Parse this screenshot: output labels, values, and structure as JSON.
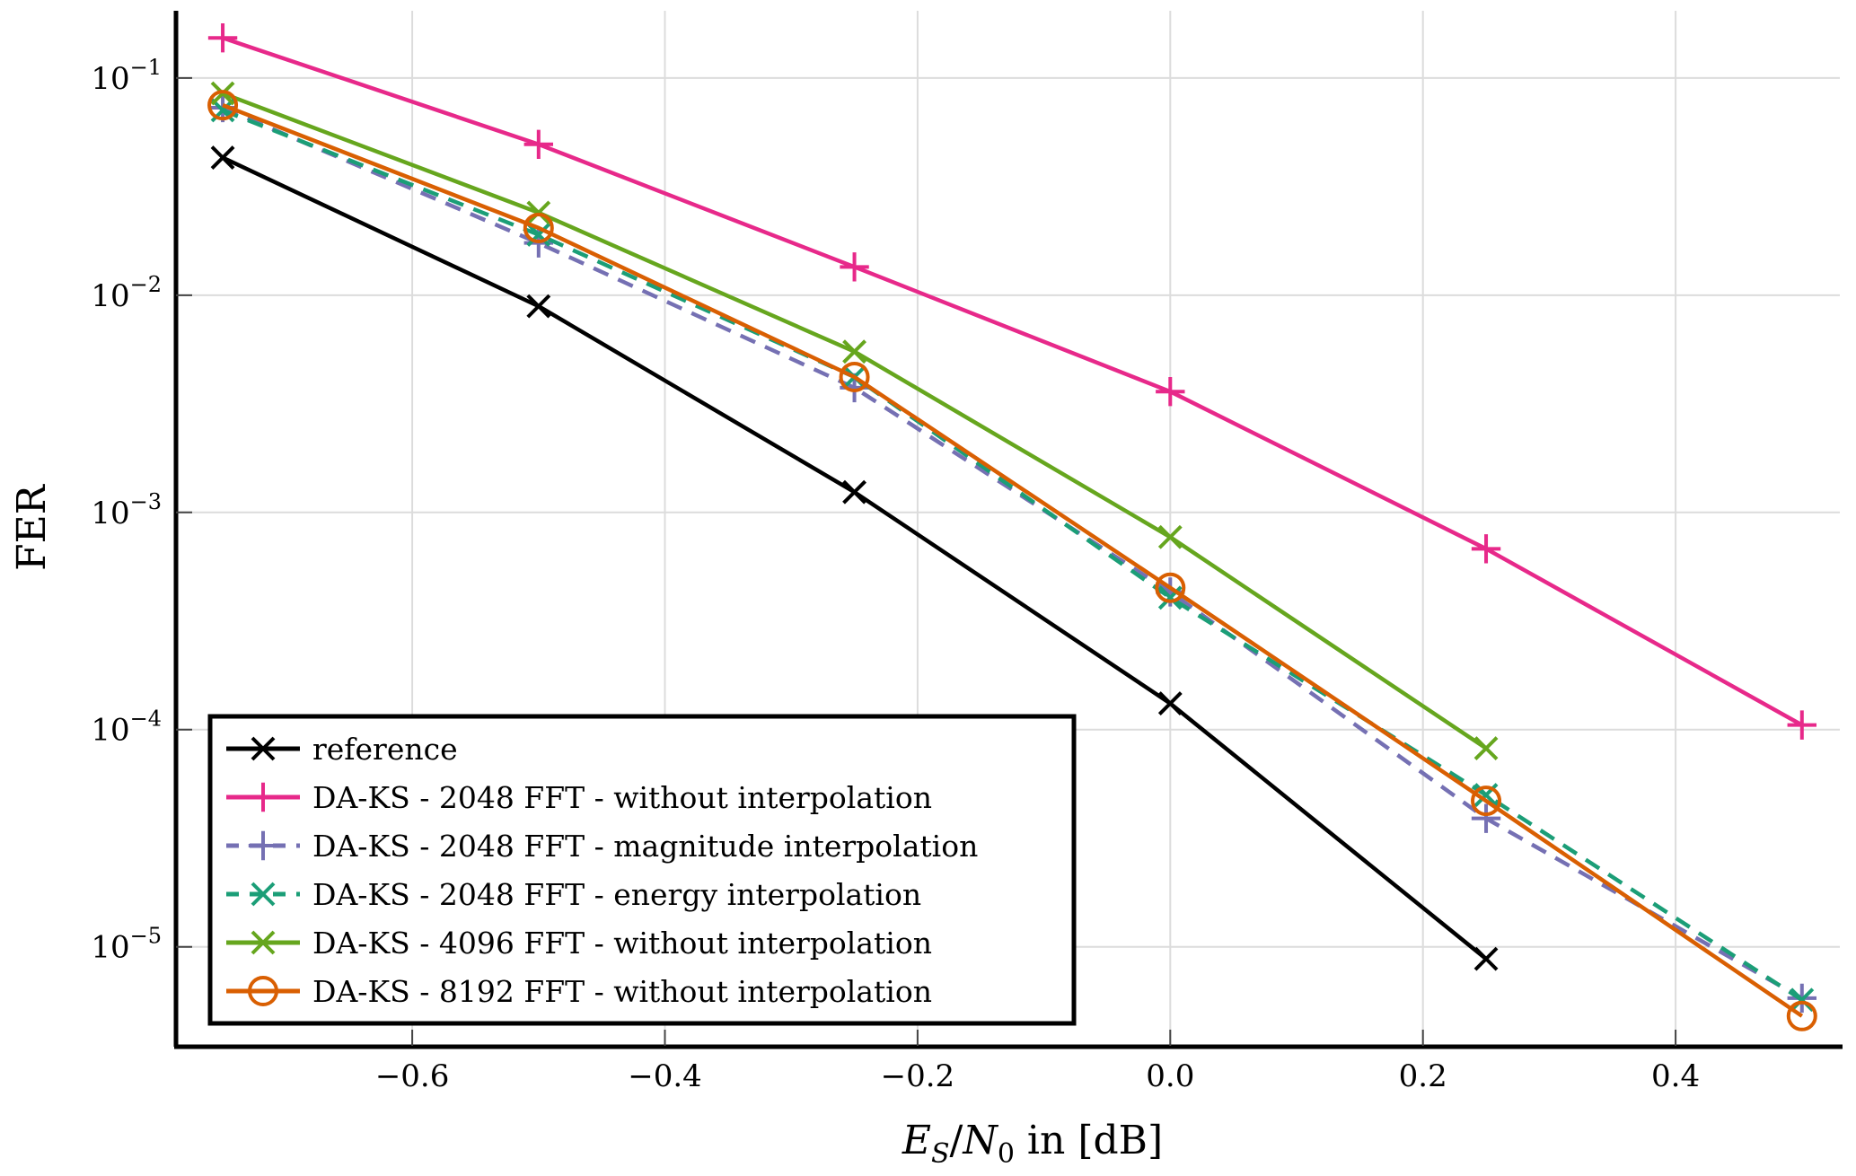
{
  "chart_data": {
    "type": "line",
    "title": "",
    "xlabel": "E_S/N_0 in [dB]",
    "xlabel_parts": {
      "main": "E",
      "sub": "S",
      "slash": "/",
      "main2": "N",
      "sub2": "0",
      "rest": " in [dB]"
    },
    "ylabel": "FER",
    "yscale": "log",
    "xlim": [
      -0.787,
      0.53
    ],
    "ylim": [
      3.5e-06,
      0.204
    ],
    "grid": true,
    "legend_position": "bottom-left",
    "x_ticks": [
      {
        "value": -0.6,
        "label": "−0.6"
      },
      {
        "value": -0.4,
        "label": "−0.4"
      },
      {
        "value": -0.2,
        "label": "−0.2"
      },
      {
        "value": 0.0,
        "label": "0.0"
      },
      {
        "value": 0.2,
        "label": "0.2"
      },
      {
        "value": 0.4,
        "label": "0.4"
      }
    ],
    "y_ticks": [
      {
        "value": 0.1,
        "base": "10",
        "exp": "−1"
      },
      {
        "value": 0.01,
        "base": "10",
        "exp": "−2"
      },
      {
        "value": 0.001,
        "base": "10",
        "exp": "−3"
      },
      {
        "value": 0.0001,
        "base": "10",
        "exp": "−4"
      },
      {
        "value": 1e-05,
        "base": "10",
        "exp": "−5"
      }
    ],
    "series": [
      {
        "name": "reference",
        "color": "#000000",
        "dash": "solid",
        "marker": "x",
        "x": [
          -0.75,
          -0.5,
          -0.25,
          0.0,
          0.25
        ],
        "y": [
          0.043,
          0.0089,
          0.00124,
          0.000132,
          8.8e-06
        ]
      },
      {
        "name": "DA-KS - 2048 FFT - without interpolation",
        "color": "#E7298A",
        "dash": "solid",
        "marker": "plus",
        "x": [
          -0.75,
          -0.5,
          -0.25,
          0.0,
          0.25,
          0.5
        ],
        "y": [
          0.153,
          0.0495,
          0.0135,
          0.0036,
          0.00068,
          0.000105
        ]
      },
      {
        "name": "DA-KS - 2048 FFT - magnitude interpolation",
        "color": "#7570B3",
        "dash": "dashed",
        "marker": "plus",
        "x": [
          -0.75,
          -0.5,
          -0.25,
          0.0,
          0.25,
          0.5
        ],
        "y": [
          0.073,
          0.0174,
          0.00375,
          0.00043,
          3.9e-05,
          5.8e-06
        ]
      },
      {
        "name": "DA-KS - 2048 FFT - energy interpolation",
        "color": "#1B9E77",
        "dash": "dashed",
        "marker": "x",
        "x": [
          -0.75,
          -0.5,
          -0.25,
          0.0,
          0.25,
          0.5
        ],
        "y": [
          0.071,
          0.019,
          0.0042,
          0.000405,
          5e-05,
          5.7e-06
        ]
      },
      {
        "name": "DA-KS - 4096 FFT - without interpolation",
        "color": "#66A61E",
        "dash": "solid",
        "marker": "x",
        "x": [
          -0.75,
          -0.5,
          -0.25,
          0.0,
          0.25
        ],
        "y": [
          0.085,
          0.024,
          0.0055,
          0.00077,
          8.2e-05
        ]
      },
      {
        "name": "DA-KS - 8192 FFT - without interpolation",
        "color": "#D95F02",
        "dash": "solid",
        "marker": "circle",
        "x": [
          -0.75,
          -0.5,
          -0.25,
          0.0,
          0.25,
          0.5
        ],
        "y": [
          0.075,
          0.0204,
          0.0042,
          0.00045,
          4.7e-05,
          4.8e-06
        ]
      }
    ]
  }
}
